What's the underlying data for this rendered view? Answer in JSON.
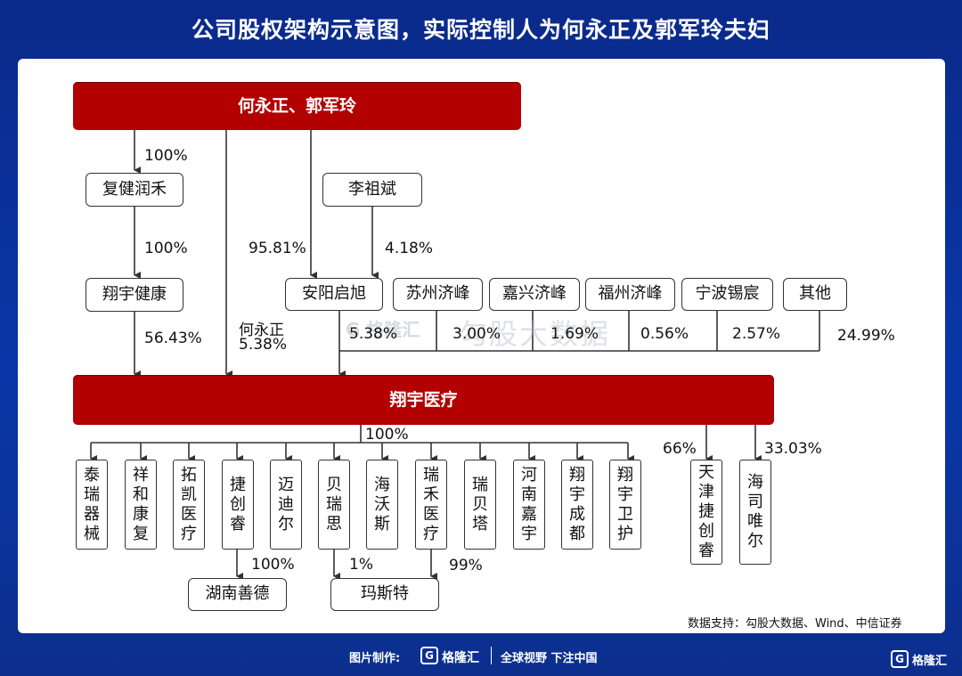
{
  "title": "公司股权架构示意图，实际控制人为何永正及郭军玲夫妇",
  "top_entity": "何永正、郭军玲",
  "target_entity": "翔宇医疗",
  "boxes": {
    "fujian_runhe": "复健润禾",
    "xiangyu_health": "翔宇健康",
    "li_zubin": "李祖斌",
    "anyang_qixu": "安阳启旭",
    "suzhou_jifeng": "苏州济峰",
    "jiaxing_jifeng": "嘉兴济峰",
    "fuzhou_jifeng": "福州济峰",
    "ningbo_xichen": "宁波锡宸",
    "others": "其他"
  },
  "labels": {
    "p100_runhe": "100%",
    "p100_health": "100%",
    "p9581": "95.81%",
    "p418": "4.18%",
    "p5643": "56.43%",
    "he_yongzheng": "何永正",
    "p538_he": "5.38%",
    "p538": "5.38%",
    "p300": "3.00%",
    "p169": "1.69%",
    "p056": "0.56%",
    "p257": "2.57%",
    "p2499": "24.99%",
    "p100_subs": "100%",
    "p66": "66%",
    "p3303": "33.03%",
    "p100_hunan": "100%",
    "p1": "1%",
    "p99": "99%"
  },
  "subsidiaries": [
    {
      "name": "泰瑞器械",
      "chars": [
        "泰",
        "瑞",
        "器",
        "械"
      ]
    },
    {
      "name": "祥和康复",
      "chars": [
        "祥",
        "和",
        "康",
        "复"
      ]
    },
    {
      "name": "拓凯医疗",
      "chars": [
        "拓",
        "凯",
        "医",
        "疗"
      ]
    },
    {
      "name": "捷创睿",
      "chars": [
        "捷",
        "创",
        "睿"
      ]
    },
    {
      "name": "迈迪尔",
      "chars": [
        "迈",
        "迪",
        "尔"
      ]
    },
    {
      "name": "贝瑞思",
      "chars": [
        "贝",
        "瑞",
        "思"
      ]
    },
    {
      "name": "海沃斯",
      "chars": [
        "海",
        "沃",
        "斯"
      ]
    },
    {
      "name": "瑞禾医疗",
      "chars": [
        "瑞",
        "禾",
        "医",
        "疗"
      ]
    },
    {
      "name": "瑞贝塔",
      "chars": [
        "瑞",
        "贝",
        "塔"
      ]
    },
    {
      "name": "河南嘉宇",
      "chars": [
        "河",
        "南",
        "嘉",
        "宇"
      ]
    },
    {
      "name": "翔宇成都",
      "chars": [
        "翔",
        "宇",
        "成",
        "都"
      ]
    },
    {
      "name": "翔宇卫护",
      "chars": [
        "翔",
        "宇",
        "卫",
        "护"
      ]
    }
  ],
  "side_subs": [
    {
      "name": "天津捷创睿",
      "chars": [
        "天",
        "津",
        "捷",
        "创",
        "睿"
      ]
    },
    {
      "name": "海司唯尔",
      "chars": [
        "海",
        "司",
        "唯",
        "尔"
      ]
    }
  ],
  "grand": {
    "hunan_shande": "湖南善德",
    "masite": "玛斯特"
  },
  "watermark": {
    "logo": "G 格隆汇",
    "text": "勾股大数据"
  },
  "source": "数据支持：勾股大数据、Wind、中信证券",
  "footer": {
    "made_by": "图片制作:",
    "brand": "格隆汇",
    "slogan": "全球视野 下注中国",
    "corner_brand": "格隆汇"
  },
  "colors": {
    "background": "#0a37a8",
    "red_bar": "#b30000",
    "line": "#333333"
  }
}
